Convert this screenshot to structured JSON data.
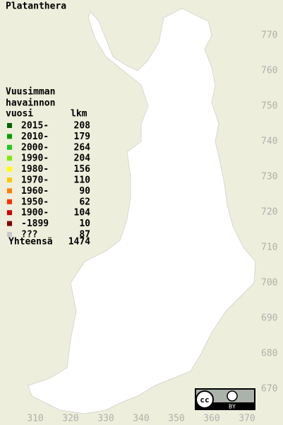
{
  "title": "Platanthera",
  "legend": {
    "heading": [
      "Vuusimman",
      "havainnon",
      "vuosi"
    ],
    "count_heading": "lkm",
    "rows": [
      {
        "label": "2015-",
        "count": 208,
        "color": "#006400"
      },
      {
        "label": "2010-",
        "count": 179,
        "color": "#00a000"
      },
      {
        "label": "2000-",
        "count": 264,
        "color": "#20c820"
      },
      {
        "label": "1990-",
        "count": 204,
        "color": "#80e800"
      },
      {
        "label": "1980-",
        "count": 156,
        "color": "#ffff00"
      },
      {
        "label": "1970-",
        "count": 110,
        "color": "#ffc800"
      },
      {
        "label": "1960-",
        "count": 90,
        "color": "#ff8000"
      },
      {
        "label": "1950-",
        "count": 62,
        "color": "#ff3000"
      },
      {
        "label": "1900-",
        "count": 104,
        "color": "#d00000"
      },
      {
        "label": "-1899",
        "count": 10,
        "color": "#800000"
      },
      {
        "label": "???",
        "count": 87,
        "color": "#c8c8c8"
      }
    ],
    "total_label": "Yhteensä",
    "total": 1474
  },
  "axes": {
    "xticks": [
      310,
      320,
      330,
      340,
      350,
      360,
      370
    ],
    "yticks": [
      670,
      680,
      690,
      700,
      710,
      720,
      730,
      740,
      750,
      760,
      770
    ]
  },
  "license": {
    "icon": "cc",
    "label": "BY"
  }
}
